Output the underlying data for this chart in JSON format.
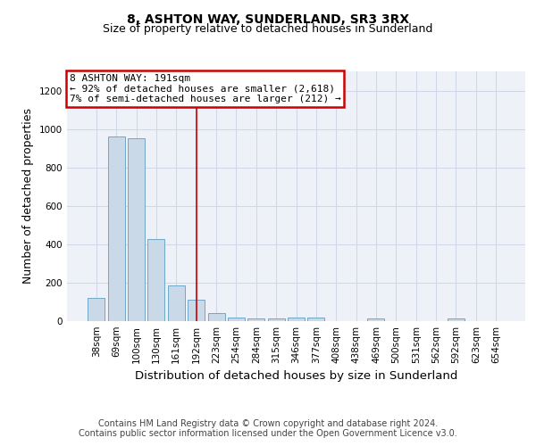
{
  "title": "8, ASHTON WAY, SUNDERLAND, SR3 3RX",
  "subtitle": "Size of property relative to detached houses in Sunderland",
  "xlabel": "Distribution of detached houses by size in Sunderland",
  "ylabel": "Number of detached properties",
  "categories": [
    "38sqm",
    "69sqm",
    "100sqm",
    "130sqm",
    "161sqm",
    "192sqm",
    "223sqm",
    "254sqm",
    "284sqm",
    "315sqm",
    "346sqm",
    "377sqm",
    "408sqm",
    "438sqm",
    "469sqm",
    "500sqm",
    "531sqm",
    "562sqm",
    "592sqm",
    "623sqm",
    "654sqm"
  ],
  "values": [
    120,
    960,
    950,
    425,
    185,
    110,
    42,
    18,
    15,
    15,
    20,
    18,
    0,
    0,
    12,
    0,
    0,
    0,
    15,
    0,
    0
  ],
  "bar_color": "#c9d9e8",
  "bar_edge_color": "#6fa8c8",
  "annotation_text_line1": "8 ASHTON WAY: 191sqm",
  "annotation_text_line2": "← 92% of detached houses are smaller (2,618)",
  "annotation_text_line3": "7% of semi-detached houses are larger (212) →",
  "annotation_box_color": "#ffffff",
  "annotation_box_edge_color": "#cc0000",
  "vline_color": "#cc0000",
  "vline_x": 5,
  "ylim": [
    0,
    1300
  ],
  "yticks": [
    0,
    200,
    400,
    600,
    800,
    1000,
    1200
  ],
  "footer_line1": "Contains HM Land Registry data © Crown copyright and database right 2024.",
  "footer_line2": "Contains public sector information licensed under the Open Government Licence v3.0.",
  "grid_color": "#d0d8e8",
  "plot_bg_color": "#eef2f8",
  "title_fontsize": 10,
  "subtitle_fontsize": 9,
  "axis_label_fontsize": 9,
  "tick_fontsize": 7.5,
  "annotation_fontsize": 8,
  "footer_fontsize": 7
}
